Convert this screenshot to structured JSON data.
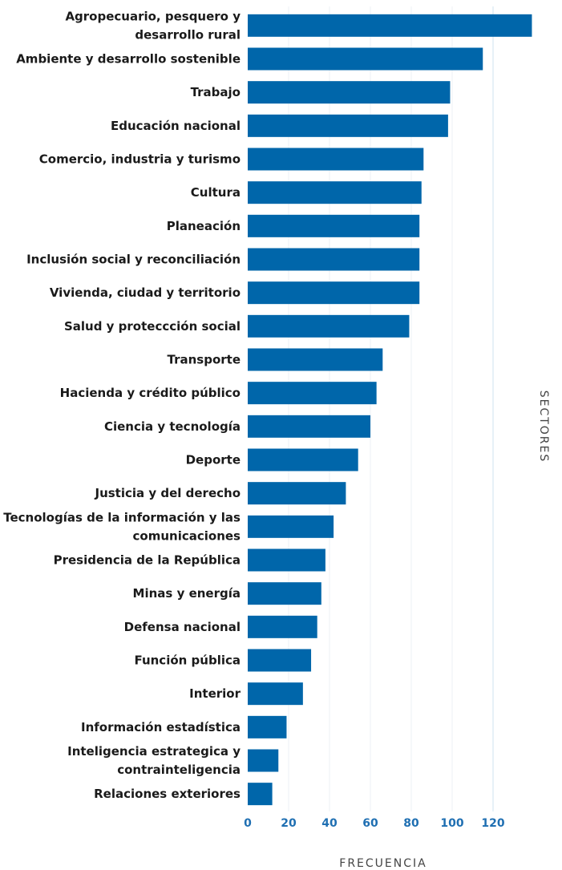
{
  "chart_data": {
    "type": "bar",
    "orientation": "horizontal",
    "xlabel": "FRECUENCIA",
    "ylabel": "SECTORES",
    "xlim": [
      0,
      140
    ],
    "x_ticks": [
      "0",
      "20",
      "40",
      "60",
      "80",
      "100",
      "120"
    ],
    "grid": true,
    "bar_color": "#0066aa",
    "categories": [
      [
        "Agropecuario, pesquero y",
        "desarrollo rural"
      ],
      [
        "Ambiente y desarrollo sostenible"
      ],
      [
        "Trabajo"
      ],
      [
        "Educación nacional"
      ],
      [
        "Comercio, industria y turismo"
      ],
      [
        "Cultura"
      ],
      [
        "Planeación"
      ],
      [
        "Inclusión social y reconciliación"
      ],
      [
        "Vivienda, ciudad y territorio"
      ],
      [
        "Salud y proteccción social"
      ],
      [
        "Transporte"
      ],
      [
        "Hacienda y crédito público"
      ],
      [
        "Ciencia y tecnología"
      ],
      [
        "Deporte"
      ],
      [
        "Justicia y del derecho"
      ],
      [
        "Tecnologías de la información y las",
        "comunicaciones"
      ],
      [
        "Presidencia de la República"
      ],
      [
        "Minas y energía"
      ],
      [
        "Defensa nacional"
      ],
      [
        "Función pública"
      ],
      [
        "Interior"
      ],
      [
        "Información estadística"
      ],
      [
        "Inteligencia estrategica y",
        "contrainteligencia"
      ],
      [
        "Relaciones exteriores"
      ]
    ],
    "values": [
      139,
      115,
      99,
      98,
      86,
      85,
      84,
      84,
      84,
      79,
      66,
      63,
      60,
      54,
      48,
      42,
      38,
      36,
      34,
      31,
      27,
      19,
      15,
      12
    ]
  }
}
